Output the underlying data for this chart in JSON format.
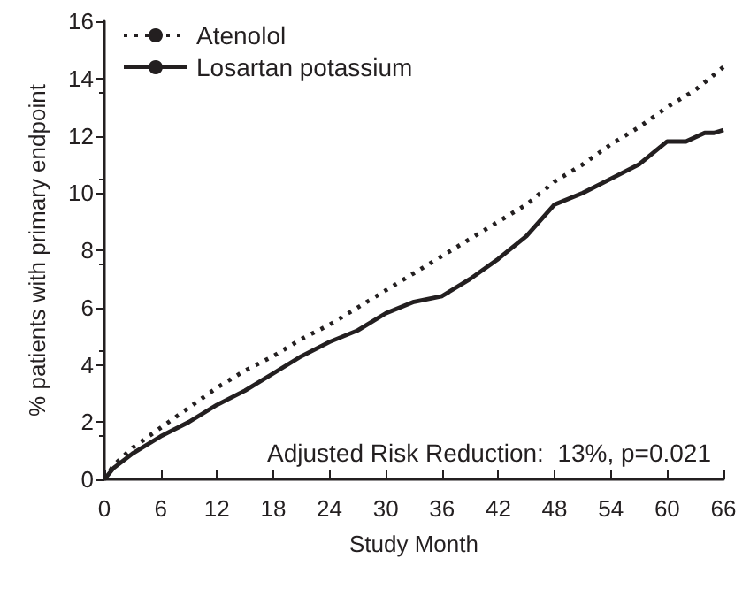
{
  "chart_data": {
    "type": "line",
    "xlabel": "Study Month",
    "ylabel": "% patients with primary endpoint",
    "xlim": [
      0,
      66
    ],
    "xticks": [
      0,
      6,
      12,
      18,
      24,
      30,
      36,
      42,
      48,
      54,
      60,
      66
    ],
    "ylim": [
      0,
      16
    ],
    "yticks": [
      0,
      2,
      4,
      6,
      8,
      10,
      12,
      14,
      16
    ],
    "grid": false,
    "legend": "top left",
    "marker": "none",
    "annotations": [
      "Adjusted Risk Reduction:  13%, p=0.021"
    ],
    "series": [
      {
        "name": "Atenolol",
        "color": "#231f20",
        "line_style": "dotted",
        "x": [
          0,
          1,
          3,
          6,
          9,
          12,
          15,
          18,
          21,
          24,
          27,
          30,
          33,
          36,
          39,
          42,
          45,
          48,
          51,
          54,
          57,
          60,
          63,
          66
        ],
        "values": [
          0,
          0.5,
          1.1,
          1.8,
          2.5,
          3.2,
          3.8,
          4.3,
          4.9,
          5.4,
          6.0,
          6.6,
          7.2,
          7.8,
          8.4,
          9.0,
          9.6,
          10.4,
          11.0,
          11.7,
          12.3,
          13.0,
          13.6,
          14.4
        ]
      },
      {
        "name": "Losartan potassium",
        "color": "#231f20",
        "line_style": "solid",
        "x": [
          0,
          1,
          3,
          6,
          9,
          12,
          15,
          18,
          21,
          24,
          27,
          30,
          33,
          36,
          39,
          42,
          45,
          48,
          51,
          54,
          57,
          60,
          62,
          64,
          65,
          66
        ],
        "values": [
          0,
          0.4,
          0.9,
          1.5,
          2.0,
          2.6,
          3.1,
          3.7,
          4.3,
          4.8,
          5.2,
          5.8,
          6.2,
          6.4,
          7.0,
          7.7,
          8.5,
          9.6,
          10.0,
          10.5,
          11.0,
          11.8,
          11.8,
          12.1,
          12.1,
          12.2
        ]
      }
    ]
  }
}
